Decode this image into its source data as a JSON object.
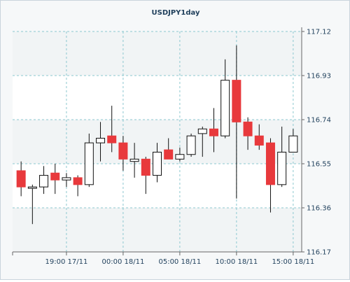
{
  "chart_data": {
    "type": "candlestick",
    "title": "USDJPY1day",
    "ylim": [
      116.17,
      117.12
    ],
    "y_ticks": [
      116.17,
      116.36,
      116.55,
      116.74,
      116.93,
      117.12
    ],
    "y_tick_labels": [
      "116.17",
      "116.36",
      "116.55",
      "116.74",
      "116.93",
      "117.12"
    ],
    "x_tick_labels": [
      "19:00 17/11",
      "00:00 18/11",
      "05:00 18/11",
      "10:00 18/11",
      "15:00 18/11"
    ],
    "x_tick_candle_index": [
      4,
      9,
      14,
      19,
      24
    ],
    "grid": true,
    "colors": {
      "bull": "#ffffff",
      "bear": "#e8393c",
      "wick": "#111111",
      "outline": "#111111",
      "axis_text": "#1f3f5b",
      "grid": "#8cc8d0",
      "band": "#ffffff",
      "band_alt": "#f1f4f5"
    },
    "candles": [
      {
        "open": 116.52,
        "high": 116.56,
        "low": 116.41,
        "close": 116.45
      },
      {
        "open": 116.45,
        "high": 116.46,
        "low": 116.29,
        "close": 116.45
      },
      {
        "open": 116.45,
        "high": 116.54,
        "low": 116.42,
        "close": 116.5
      },
      {
        "open": 116.51,
        "high": 116.55,
        "low": 116.42,
        "close": 116.48
      },
      {
        "open": 116.48,
        "high": 116.51,
        "low": 116.45,
        "close": 116.49
      },
      {
        "open": 116.49,
        "high": 116.5,
        "low": 116.41,
        "close": 116.46
      },
      {
        "open": 116.46,
        "high": 116.68,
        "low": 116.45,
        "close": 116.64
      },
      {
        "open": 116.64,
        "high": 116.73,
        "low": 116.56,
        "close": 116.66
      },
      {
        "open": 116.67,
        "high": 116.8,
        "low": 116.6,
        "close": 116.64
      },
      {
        "open": 116.64,
        "high": 116.67,
        "low": 116.52,
        "close": 116.57
      },
      {
        "open": 116.56,
        "high": 116.64,
        "low": 116.49,
        "close": 116.57
      },
      {
        "open": 116.57,
        "high": 116.58,
        "low": 116.42,
        "close": 116.5
      },
      {
        "open": 116.5,
        "high": 116.64,
        "low": 116.47,
        "close": 116.6
      },
      {
        "open": 116.61,
        "high": 116.66,
        "low": 116.57,
        "close": 116.57
      },
      {
        "open": 116.57,
        "high": 116.62,
        "low": 116.56,
        "close": 116.59
      },
      {
        "open": 116.59,
        "high": 116.68,
        "low": 116.58,
        "close": 116.67
      },
      {
        "open": 116.68,
        "high": 116.71,
        "low": 116.58,
        "close": 116.7
      },
      {
        "open": 116.7,
        "high": 116.79,
        "low": 116.6,
        "close": 116.67
      },
      {
        "open": 116.67,
        "high": 117.0,
        "low": 116.66,
        "close": 116.91
      },
      {
        "open": 116.91,
        "high": 117.06,
        "low": 116.4,
        "close": 116.73
      },
      {
        "open": 116.73,
        "high": 116.75,
        "low": 116.61,
        "close": 116.67
      },
      {
        "open": 116.67,
        "high": 116.72,
        "low": 116.61,
        "close": 116.63
      },
      {
        "open": 116.64,
        "high": 116.66,
        "low": 116.34,
        "close": 116.46
      },
      {
        "open": 116.46,
        "high": 116.71,
        "low": 116.45,
        "close": 116.6
      },
      {
        "open": 116.6,
        "high": 116.7,
        "low": 116.6,
        "close": 116.67
      }
    ]
  }
}
